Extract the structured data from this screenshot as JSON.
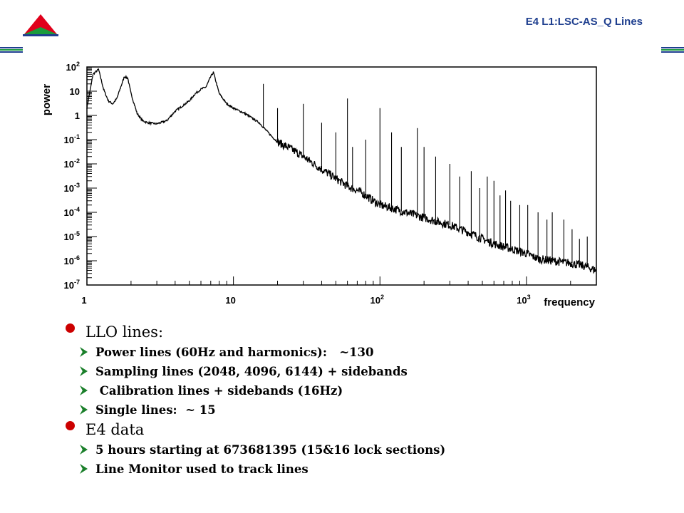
{
  "header": {
    "title": "E4 L1:LSC-AS_Q Lines",
    "logo_colors": {
      "red": "#e0001b",
      "green": "#1a9b3c",
      "blue": "#1f3f8f"
    },
    "rule_colors": [
      "#1f3f8f",
      "#1a9b3c",
      "#1f3f8f"
    ]
  },
  "chart_data": {
    "type": "line",
    "xlabel": "frequency",
    "ylabel": "power",
    "x_scale": "log",
    "y_scale": "log",
    "xlim": [
      1,
      3000
    ],
    "ylim": [
      1e-07,
      100
    ],
    "x_ticks": [
      {
        "value": 1,
        "base": "1",
        "exp": ""
      },
      {
        "value": 10,
        "base": "10",
        "exp": ""
      },
      {
        "value": 100,
        "base": "10",
        "exp": "2"
      },
      {
        "value": 1000,
        "base": "10",
        "exp": "3"
      }
    ],
    "y_ticks": [
      {
        "value": 100,
        "base": "10",
        "exp": "2"
      },
      {
        "value": 10,
        "base": "10",
        "exp": ""
      },
      {
        "value": 1,
        "base": "1",
        "exp": ""
      },
      {
        "value": 0.1,
        "base": "10",
        "exp": "-1"
      },
      {
        "value": 0.01,
        "base": "10",
        "exp": "-2"
      },
      {
        "value": 0.001,
        "base": "10",
        "exp": "-3"
      },
      {
        "value": 0.0001,
        "base": "10",
        "exp": "-4"
      },
      {
        "value": 1e-05,
        "base": "10",
        "exp": "-5"
      },
      {
        "value": 1e-06,
        "base": "10",
        "exp": "-6"
      },
      {
        "value": 1e-07,
        "base": "10",
        "exp": "-7"
      }
    ],
    "grid": false,
    "series": [
      {
        "color": "#000000",
        "x": [
          1.0,
          1.1,
          1.2,
          1.3,
          1.4,
          1.5,
          1.6,
          1.8,
          1.9,
          2.0,
          2.2,
          2.4,
          2.6,
          3.0,
          3.5,
          4.0,
          4.5,
          5.0,
          5.5,
          6.0,
          6.5,
          7.0,
          7.3,
          7.6,
          8.0,
          9.0,
          10,
          12,
          15,
          18,
          20,
          25,
          30,
          40,
          50,
          60,
          70,
          80,
          90,
          100,
          120,
          150,
          200,
          250,
          300,
          400,
          500,
          600,
          800,
          1000,
          1200,
          1500,
          2000,
          2500,
          3000
        ],
        "y": [
          2.0,
          50,
          80,
          12,
          4,
          3,
          5,
          40,
          35,
          8,
          1.2,
          0.6,
          0.5,
          0.45,
          0.6,
          1.5,
          2.5,
          4,
          8,
          12,
          15,
          40,
          60,
          25,
          8,
          3,
          2,
          1.2,
          0.5,
          0.15,
          0.08,
          0.04,
          0.02,
          0.006,
          0.0025,
          0.0012,
          0.0008,
          0.0005,
          0.0003,
          0.0002,
          0.00015,
          0.0001,
          6e-05,
          4e-05,
          3e-05,
          1.5e-05,
          8e-06,
          5e-06,
          3e-06,
          2e-06,
          1.2e-06,
          1e-06,
          8e-07,
          6e-07,
          4e-07
        ]
      }
    ],
    "lines": [
      {
        "x": 16,
        "top": 20,
        "bottom": 0.3
      },
      {
        "x": 20,
        "top": 2,
        "bottom": 0.08
      },
      {
        "x": 30,
        "top": 3,
        "bottom": 0.02
      },
      {
        "x": 40,
        "top": 0.5,
        "bottom": 0.006
      },
      {
        "x": 50,
        "top": 0.2,
        "bottom": 0.0025
      },
      {
        "x": 60,
        "top": 5,
        "bottom": 0.0012
      },
      {
        "x": 65,
        "top": 0.05,
        "bottom": 0.001
      },
      {
        "x": 80,
        "top": 0.1,
        "bottom": 0.0005
      },
      {
        "x": 100,
        "top": 2,
        "bottom": 0.0002
      },
      {
        "x": 120,
        "top": 0.2,
        "bottom": 0.00015
      },
      {
        "x": 140,
        "top": 0.05,
        "bottom": 0.00011
      },
      {
        "x": 180,
        "top": 0.3,
        "bottom": 7e-05
      },
      {
        "x": 200,
        "top": 0.05,
        "bottom": 6e-05
      },
      {
        "x": 240,
        "top": 0.02,
        "bottom": 4e-05
      },
      {
        "x": 300,
        "top": 0.01,
        "bottom": 3e-05
      },
      {
        "x": 350,
        "top": 0.003,
        "bottom": 2e-05
      },
      {
        "x": 420,
        "top": 0.005,
        "bottom": 1.3e-05
      },
      {
        "x": 480,
        "top": 0.001,
        "bottom": 1e-05
      },
      {
        "x": 540,
        "top": 0.003,
        "bottom": 7e-06
      },
      {
        "x": 600,
        "top": 0.002,
        "bottom": 5e-06
      },
      {
        "x": 660,
        "top": 0.0005,
        "bottom": 4e-06
      },
      {
        "x": 720,
        "top": 0.0008,
        "bottom": 3.5e-06
      },
      {
        "x": 780,
        "top": 0.0003,
        "bottom": 3e-06
      },
      {
        "x": 900,
        "top": 0.0002,
        "bottom": 2.5e-06
      },
      {
        "x": 1020,
        "top": 0.0002,
        "bottom": 2e-06
      },
      {
        "x": 1200,
        "top": 0.0001,
        "bottom": 1.2e-06
      },
      {
        "x": 1380,
        "top": 5e-05,
        "bottom": 1e-06
      },
      {
        "x": 1500,
        "top": 0.0001,
        "bottom": 1e-06
      },
      {
        "x": 1800,
        "top": 5e-05,
        "bottom": 9e-07
      },
      {
        "x": 2048,
        "top": 2e-05,
        "bottom": 8e-07
      },
      {
        "x": 2300,
        "top": 8e-06,
        "bottom": 7e-07
      },
      {
        "x": 2600,
        "top": 1e-05,
        "bottom": 6e-07
      }
    ]
  },
  "bullets": [
    {
      "text": "LLO lines:",
      "items": [
        "Power lines (60Hz and harmonics):   ~130",
        "Sampling lines (2048, 4096, 6144) + sidebands",
        " Calibration lines + sidebands (16Hz)",
        "Single lines:  ~ 15"
      ]
    },
    {
      "text": "E4 data",
      "items": [
        "5 hours starting at 673681395 (15&16 lock sections)",
        "Line Monitor used to track lines"
      ]
    }
  ],
  "colors": {
    "bullet_dot": "#cc0000",
    "arrow": "#1a7f2a",
    "title": "#1f3f8f"
  }
}
